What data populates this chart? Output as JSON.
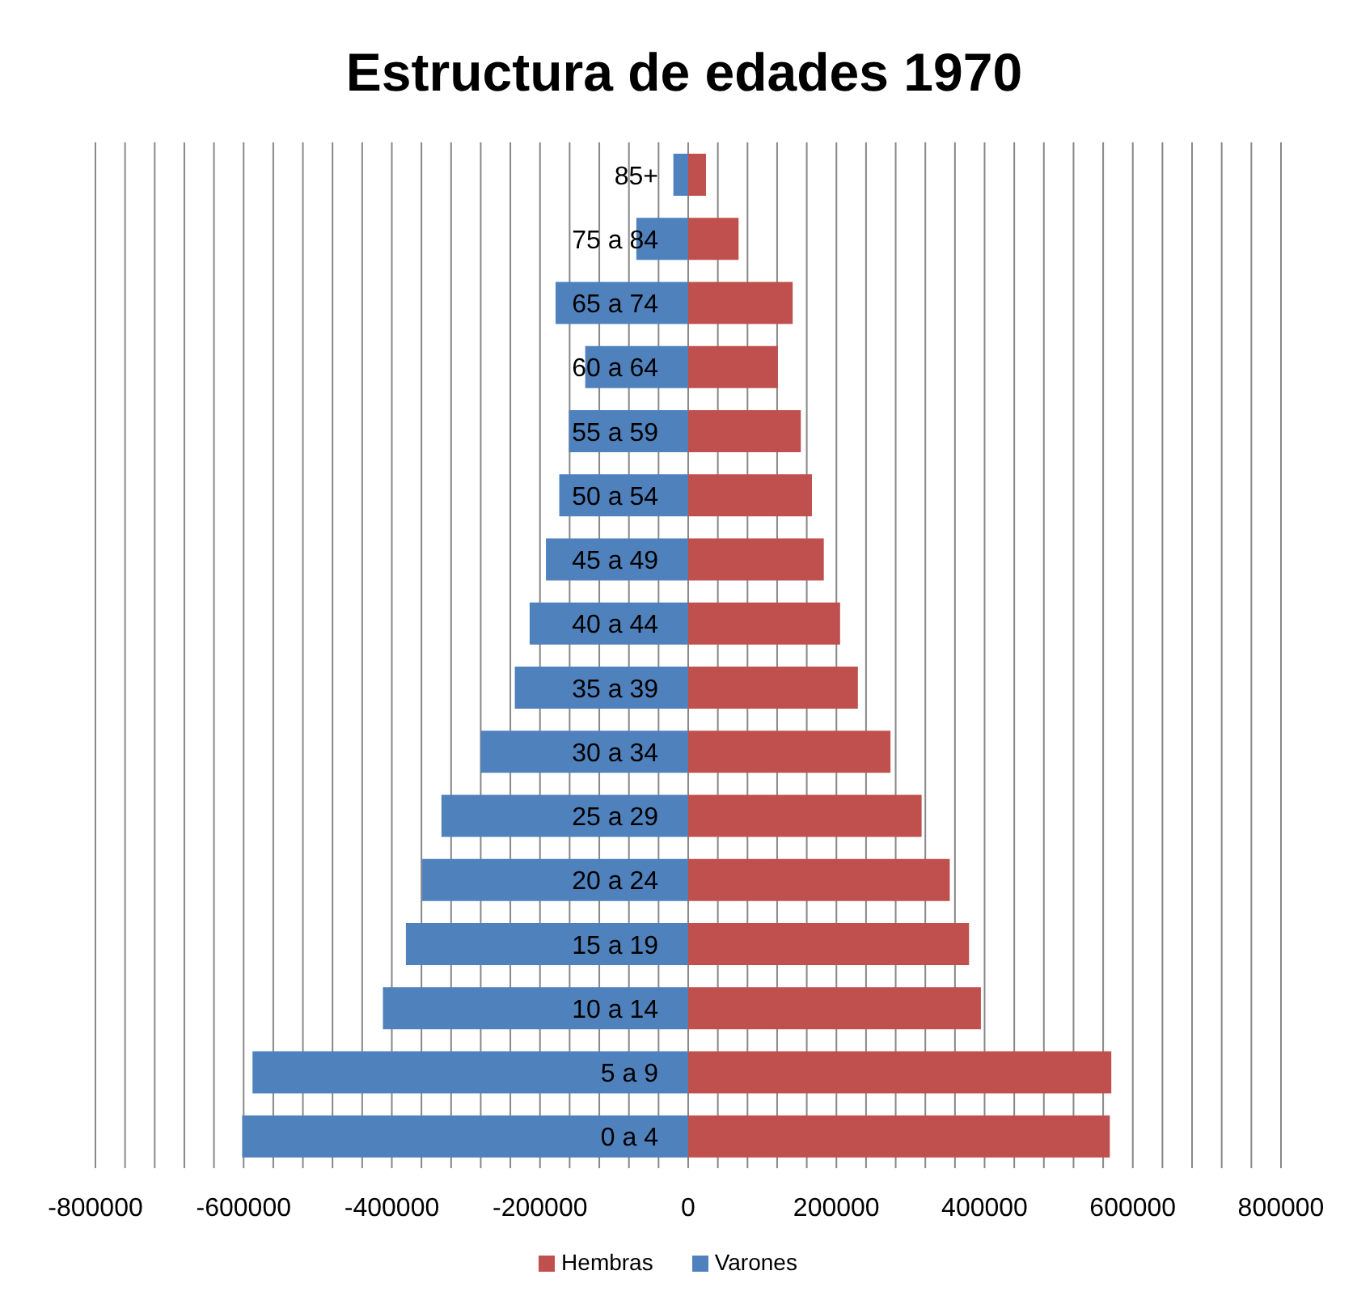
{
  "chart_data": {
    "type": "bar",
    "orientation": "horizontal",
    "stacked": true,
    "title": "Estructura de edades 1970",
    "categories": [
      "85+",
      "75 a 84",
      "65 a 74",
      "60 a 64",
      "55 a 59",
      "50 a 54",
      "45 a 49",
      "40 a 44",
      "35 a 39",
      "30 a 34",
      "25 a 29",
      "20 a 24",
      "15 a 19",
      "10 a 14",
      "5 a 9",
      "0 a 4"
    ],
    "series": [
      {
        "name": "Varones",
        "color": "#4f81bd",
        "values": [
          -20000,
          -70000,
          -179000,
          -139000,
          -161000,
          -174000,
          -192000,
          -214000,
          -234000,
          -280000,
          -333000,
          -359000,
          -381000,
          -412000,
          -588000,
          -602000
        ]
      },
      {
        "name": "Hembras",
        "color": "#c0504d",
        "values": [
          24000,
          68000,
          141000,
          121000,
          152000,
          167000,
          183000,
          205000,
          229000,
          273000,
          315000,
          353000,
          379000,
          395000,
          571000,
          569000
        ]
      }
    ],
    "xlim": [
      -800000,
      800000
    ],
    "xticks": [
      -800000,
      {
        "value": -760000,
        "label": null
      },
      {
        "value": -720000,
        "label": null
      },
      {
        "value": -680000,
        "label": null
      },
      {
        "value": -640000,
        "label": null
      },
      -600000,
      {
        "value": -560000,
        "label": null
      },
      {
        "value": -520000,
        "label": null
      },
      {
        "value": -480000,
        "label": null
      },
      {
        "value": -440000,
        "label": null
      },
      -400000,
      {
        "value": -360000,
        "label": null
      },
      {
        "value": -320000,
        "label": null
      },
      {
        "value": -280000,
        "label": null
      },
      {
        "value": -240000,
        "label": null
      },
      -200000,
      {
        "value": -160000,
        "label": null
      },
      {
        "value": -120000,
        "label": null
      },
      {
        "value": -80000,
        "label": null
      },
      {
        "value": -40000,
        "label": null
      },
      0,
      {
        "value": 40000,
        "label": null
      },
      {
        "value": 80000,
        "label": null
      },
      {
        "value": 120000,
        "label": null
      },
      {
        "value": 160000,
        "label": null
      },
      200000,
      {
        "value": 240000,
        "label": null
      },
      {
        "value": 280000,
        "label": null
      },
      {
        "value": 320000,
        "label": null
      },
      {
        "value": 360000,
        "label": null
      },
      400000,
      {
        "value": 440000,
        "label": null
      },
      {
        "value": 480000,
        "label": null
      },
      {
        "value": 520000,
        "label": null
      },
      {
        "value": 560000,
        "label": null
      },
      600000,
      {
        "value": 640000,
        "label": null
      },
      {
        "value": 680000,
        "label": null
      },
      {
        "value": 720000,
        "label": null
      },
      {
        "value": 760000,
        "label": null
      },
      800000
    ],
    "grid": "x",
    "legend": "bottom"
  }
}
